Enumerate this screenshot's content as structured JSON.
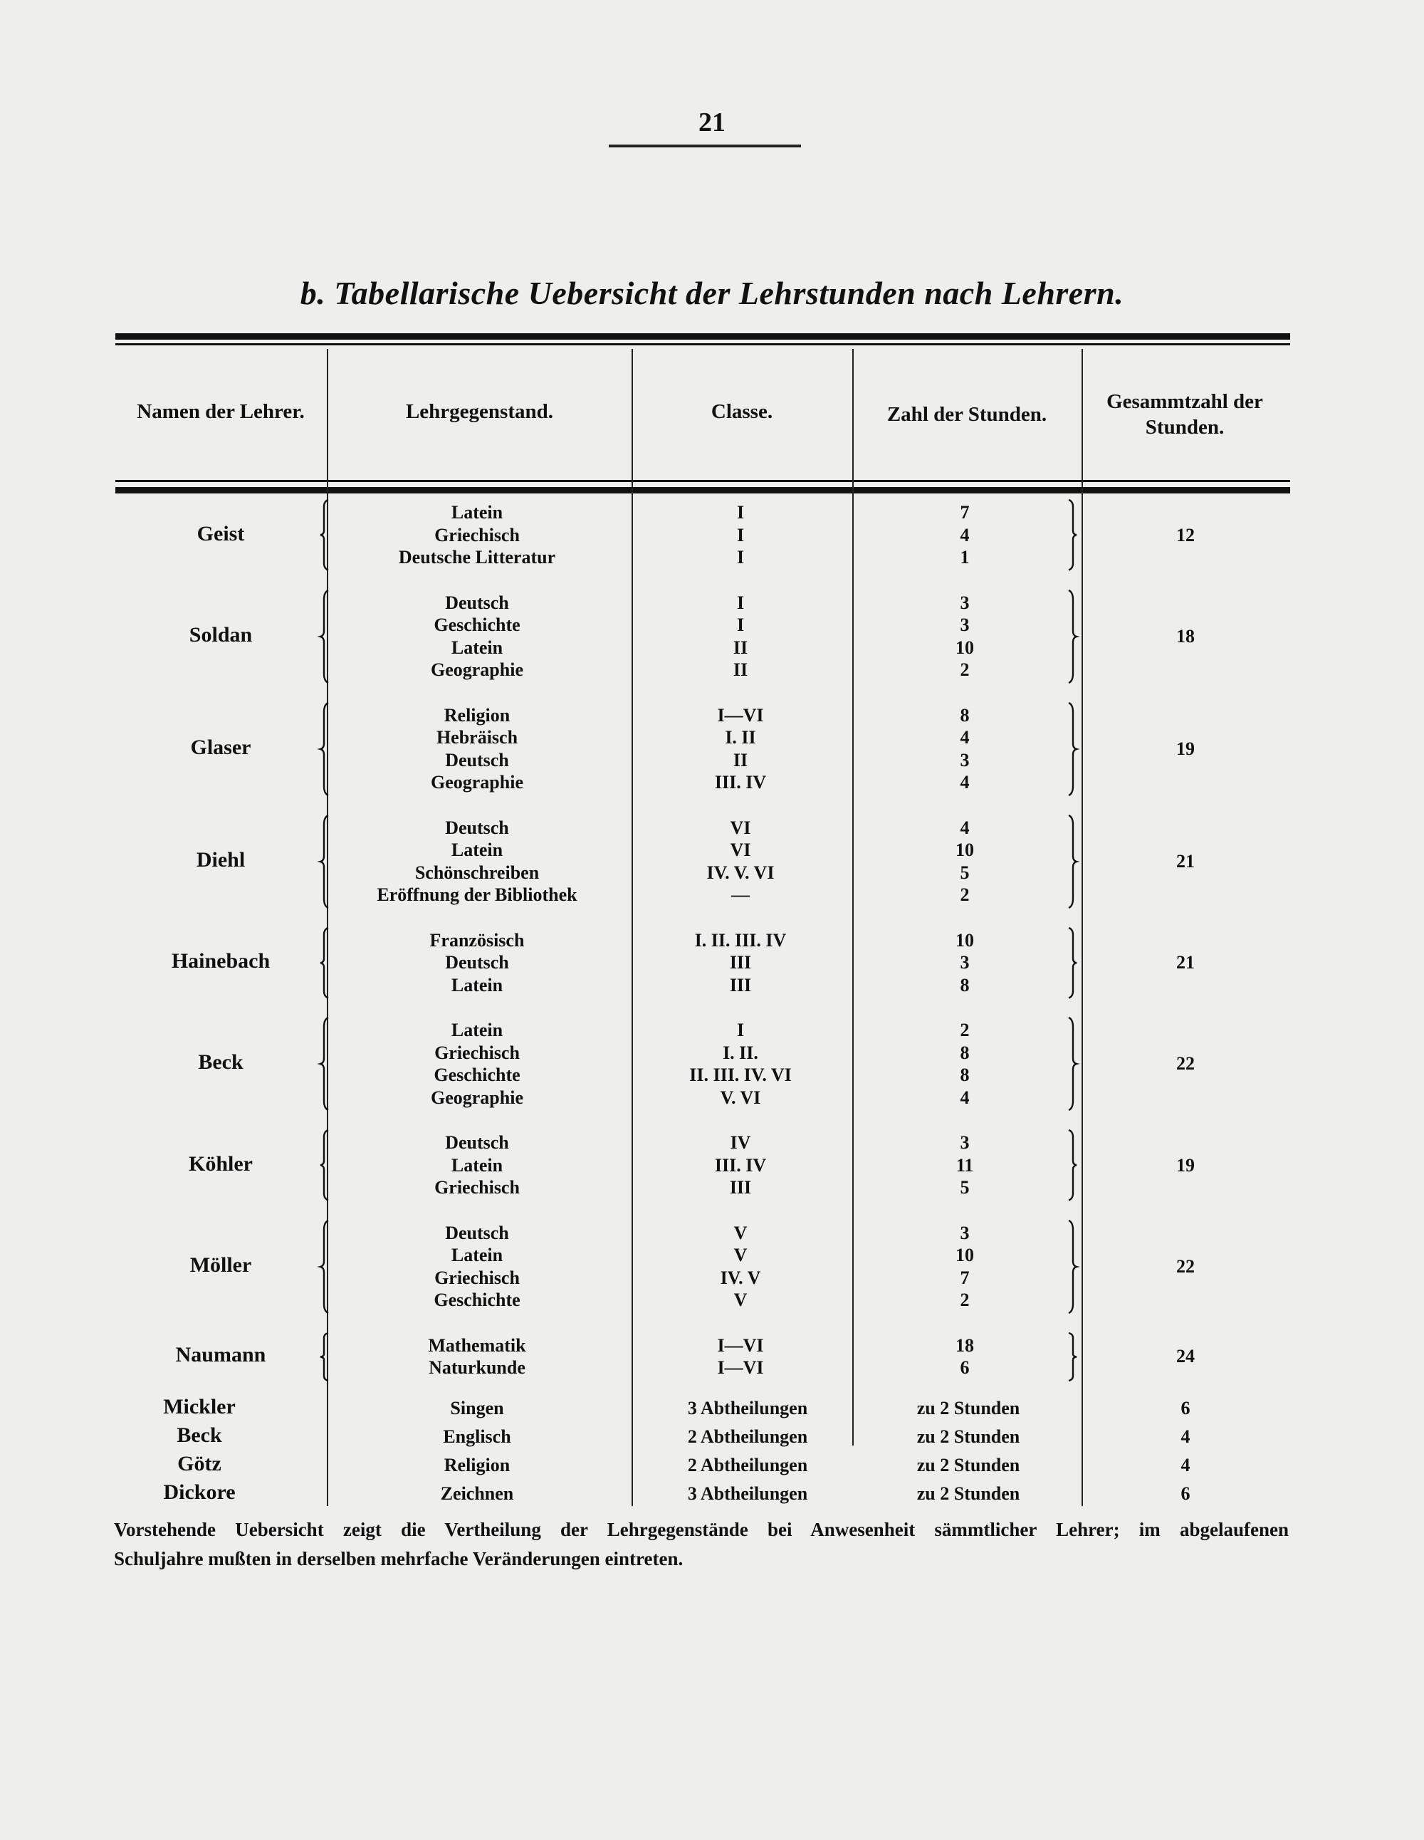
{
  "page_number": "21",
  "title": "b. Tabellarische Uebersicht der Lehrstunden nach Lehrern.",
  "table": {
    "headers": {
      "teacher": "Namen der Lehrer.",
      "subject": "Lehrgegenstand.",
      "class": "Classe.",
      "hours": "Zahl der Stunden.",
      "total_line1": "Gesammtzahl der",
      "total_line2": "Stunden."
    },
    "groups": [
      {
        "teacher": "Geist",
        "total": "12",
        "rows": [
          {
            "subject": "Latein",
            "class": "I",
            "hours": "7"
          },
          {
            "subject": "Griechisch",
            "class": "I",
            "hours": "4"
          },
          {
            "subject": "Deutsche Litteratur",
            "class": "I",
            "hours": "1"
          }
        ]
      },
      {
        "teacher": "Soldan",
        "total": "18",
        "rows": [
          {
            "subject": "Deutsch",
            "class": "I",
            "hours": "3"
          },
          {
            "subject": "Geschichte",
            "class": "I",
            "hours": "3"
          },
          {
            "subject": "Latein",
            "class": "II",
            "hours": "10"
          },
          {
            "subject": "Geographie",
            "class": "II",
            "hours": "2"
          }
        ]
      },
      {
        "teacher": "Glaser",
        "total": "19",
        "rows": [
          {
            "subject": "Religion",
            "class": "I—VI",
            "hours": "8"
          },
          {
            "subject": "Hebräisch",
            "class": "I. II",
            "hours": "4"
          },
          {
            "subject": "Deutsch",
            "class": "II",
            "hours": "3"
          },
          {
            "subject": "Geographie",
            "class": "III. IV",
            "hours": "4"
          }
        ]
      },
      {
        "teacher": "Diehl",
        "total": "21",
        "rows": [
          {
            "subject": "Deutsch",
            "class": "VI",
            "hours": "4"
          },
          {
            "subject": "Latein",
            "class": "VI",
            "hours": "10"
          },
          {
            "subject": "Schönschreiben",
            "class": "IV. V. VI",
            "hours": "5"
          },
          {
            "subject": "Eröffnung der Bibliothek",
            "class": "—",
            "hours": "2"
          }
        ]
      },
      {
        "teacher": "Hainebach",
        "total": "21",
        "rows": [
          {
            "subject": "Französisch",
            "class": "I. II. III. IV",
            "hours": "10"
          },
          {
            "subject": "Deutsch",
            "class": "III",
            "hours": "3"
          },
          {
            "subject": "Latein",
            "class": "III",
            "hours": "8"
          }
        ]
      },
      {
        "teacher": "Beck",
        "total": "22",
        "rows": [
          {
            "subject": "Latein",
            "class": "I",
            "hours": "2"
          },
          {
            "subject": "Griechisch",
            "class": "I. II.",
            "hours": "8"
          },
          {
            "subject": "Geschichte",
            "class": "II. III. IV. VI",
            "hours": "8"
          },
          {
            "subject": "Geographie",
            "class": "V. VI",
            "hours": "4"
          }
        ]
      },
      {
        "teacher": "Köhler",
        "total": "19",
        "rows": [
          {
            "subject": "Deutsch",
            "class": "IV",
            "hours": "3"
          },
          {
            "subject": "Latein",
            "class": "III. IV",
            "hours": "11"
          },
          {
            "subject": "Griechisch",
            "class": "III",
            "hours": "5"
          }
        ]
      },
      {
        "teacher": "Möller",
        "total": "22",
        "rows": [
          {
            "subject": "Deutsch",
            "class": "V",
            "hours": "3"
          },
          {
            "subject": "Latein",
            "class": "V",
            "hours": "10"
          },
          {
            "subject": "Griechisch",
            "class": "IV. V",
            "hours": "7"
          },
          {
            "subject": "Geschichte",
            "class": "V",
            "hours": "2"
          }
        ]
      },
      {
        "teacher": "Naumann",
        "total": "24",
        "rows": [
          {
            "subject": "Mathematik",
            "class": "I—VI",
            "hours": "18"
          },
          {
            "subject": "Naturkunde",
            "class": "I—VI",
            "hours": "6"
          }
        ]
      }
    ],
    "special_rows": [
      {
        "teacher": "Mickler",
        "subject": "Singen",
        "class": "3 Abtheilungen",
        "hours": "zu 2 Stunden",
        "total": "6"
      },
      {
        "teacher": "Beck",
        "subject": "Englisch",
        "class": "2 Abtheilungen",
        "hours": "zu 2 Stunden",
        "total": "4"
      },
      {
        "teacher": "Götz",
        "subject": "Religion",
        "class": "2 Abtheilungen",
        "hours": "zu 2 Stunden",
        "total": "4"
      },
      {
        "teacher": "Dickore",
        "subject": "Zeichnen",
        "class": "3 Abtheilungen",
        "hours": "zu 2 Stunden",
        "total": "6"
      }
    ]
  },
  "note": {
    "line1": "Vorstehende Uebersicht zeigt die Vertheilung der Lehrgegenstände bei Anwesenheit sämmtlicher Lehrer; im abgelaufenen",
    "line2": "Schuljahre mußten in derselben mehrfache Veränderungen eintreten."
  }
}
